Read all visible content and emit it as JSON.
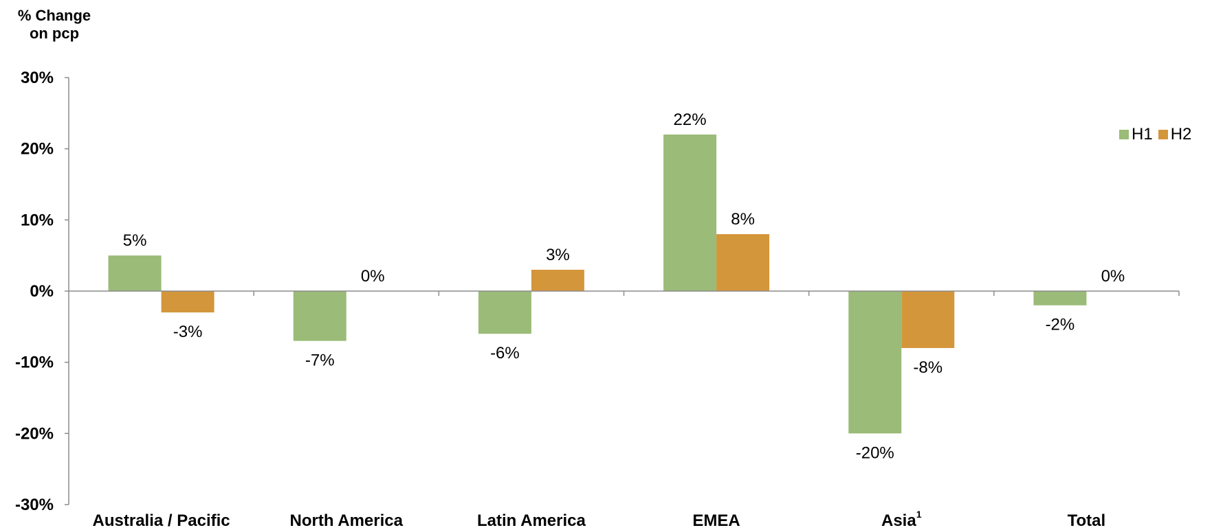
{
  "chart_data": {
    "type": "bar",
    "ylabel_lines": [
      "% Change",
      "on pcp"
    ],
    "categories": [
      {
        "label": "Australia / Pacific",
        "superscript": ""
      },
      {
        "label": "North America",
        "superscript": ""
      },
      {
        "label": "Latin America",
        "superscript": ""
      },
      {
        "label": "EMEA",
        "superscript": ""
      },
      {
        "label": "Asia",
        "superscript": "1"
      },
      {
        "label": "Total",
        "superscript": ""
      }
    ],
    "series": [
      {
        "name": "H1",
        "color": "#9BBB78",
        "values": [
          5,
          -7,
          -6,
          22,
          -20,
          -2
        ],
        "labels": [
          "5%",
          "-7%",
          "-6%",
          "22%",
          "-20%",
          "-2%"
        ]
      },
      {
        "name": "H2",
        "color": "#D4963A",
        "values": [
          -3,
          0,
          3,
          8,
          -8,
          0
        ],
        "labels": [
          "-3%",
          "0%",
          "3%",
          "8%",
          "-8%",
          "0%"
        ]
      }
    ],
    "ylim": [
      -30,
      30
    ],
    "yticks": [
      30,
      20,
      10,
      0,
      -10,
      -20,
      -30
    ],
    "ytick_labels": [
      "30%",
      "20%",
      "10%",
      "0%",
      "-10%",
      "-20%",
      "-30%"
    ],
    "grid": false,
    "legend_position": "right"
  }
}
